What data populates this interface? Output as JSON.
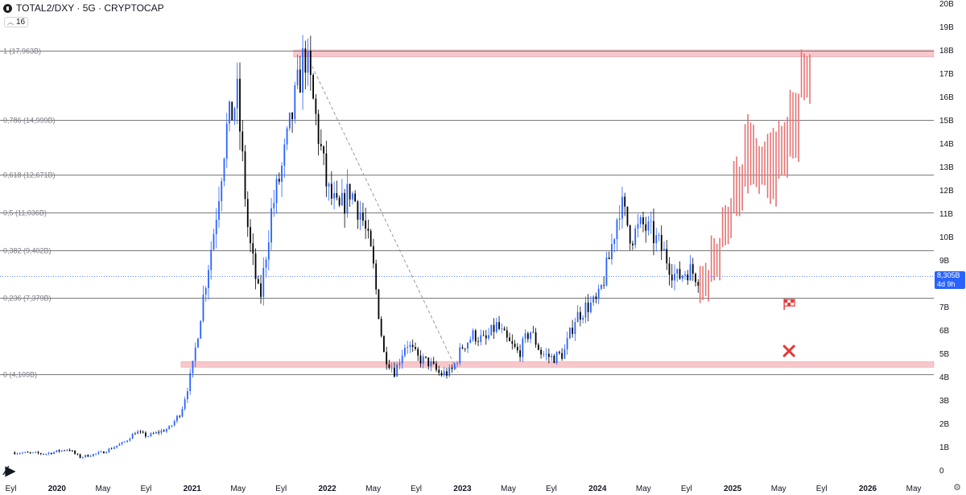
{
  "header": {
    "title": "TOTAL2/DXY · 5G · CRYPTOCAP",
    "indicator_badge": "16"
  },
  "price_tag": {
    "value": "8,305B",
    "countdown": "4d 9h",
    "color": "#2962ff"
  },
  "chart_data": {
    "type": "candlestick",
    "title": "TOTAL2/DXY · 5G · CRYPTOCAP",
    "y_unit": "B",
    "ylim": [
      0,
      20
    ],
    "y_ticks": [
      "0",
      "1B",
      "2B",
      "3B",
      "4B",
      "5B",
      "6B",
      "7B",
      "8B",
      "9B",
      "10B",
      "11B",
      "12B",
      "13B",
      "14B",
      "15B",
      "16B",
      "17B",
      "18B",
      "19B",
      "20B"
    ],
    "x_ticks": [
      "Eyl",
      "2020",
      "May",
      "Eyl",
      "2021",
      "May",
      "Eyl",
      "2022",
      "May",
      "Eyl",
      "2023",
      "May",
      "Eyl",
      "2024",
      "May",
      "Eyl",
      "2025",
      "May",
      "Eyl",
      "2026",
      "May"
    ],
    "x_range": [
      "2019-09",
      "2026-07"
    ],
    "last_price": 8.305,
    "fib_levels": [
      {
        "label": "1 (17,963B)",
        "value": 17.963
      },
      {
        "label": "0,786 (14,999B)",
        "value": 14.999
      },
      {
        "label": "0,618 (12,671B)",
        "value": 12.671
      },
      {
        "label": "0,5 (11,036B)",
        "value": 11.036
      },
      {
        "label": "0,382 (9,402B)",
        "value": 9.402
      },
      {
        "label": "0,236 (7,379B)",
        "value": 7.379
      },
      {
        "label": "0 (4,109B)",
        "value": 4.109
      }
    ],
    "zones": [
      {
        "from": "2021-10",
        "to": "2026-07",
        "low": 17.7,
        "high": 18.0,
        "color": "#f6c7cb"
      },
      {
        "from": "2020-12",
        "to": "2026-07",
        "low": 4.4,
        "high": 4.65,
        "color": "#f6c7cb"
      }
    ],
    "trendline": {
      "from": [
        "2021-11",
        17.96
      ],
      "to": [
        "2022-12",
        4.2
      ],
      "style": "dashed"
    },
    "series": [
      {
        "style": "candles",
        "up_color": "#2962ff",
        "down_color": "#000000",
        "close_path": [
          [
            "2019-09",
            0.75
          ],
          [
            "2019-12",
            0.7
          ],
          [
            "2020-02",
            0.9
          ],
          [
            "2020-03",
            0.55
          ],
          [
            "2020-05",
            0.75
          ],
          [
            "2020-07",
            1.2
          ],
          [
            "2020-08",
            1.65
          ],
          [
            "2020-09",
            1.45
          ],
          [
            "2020-11",
            1.8
          ],
          [
            "2020-12",
            2.5
          ],
          [
            "2021-01",
            4.3
          ],
          [
            "2021-02",
            7.5
          ],
          [
            "2021-03",
            10.5
          ],
          [
            "2021-04",
            14.5
          ],
          [
            "2021-05",
            16.0
          ],
          [
            "2021-06",
            10.0
          ],
          [
            "2021-07",
            7.2
          ],
          [
            "2021-08",
            11.0
          ],
          [
            "2021-09",
            13.0
          ],
          [
            "2021-10",
            15.5
          ],
          [
            "2021-11",
            17.9
          ],
          [
            "2021-12",
            15.0
          ],
          [
            "2022-01",
            12.0
          ],
          [
            "2022-02",
            11.0
          ],
          [
            "2022-03",
            12.0
          ],
          [
            "2022-04",
            11.0
          ],
          [
            "2022-05",
            9.0
          ],
          [
            "2022-06",
            5.0
          ],
          [
            "2022-07",
            4.2
          ],
          [
            "2022-08",
            5.5
          ],
          [
            "2022-09",
            4.8
          ],
          [
            "2022-10",
            4.6
          ],
          [
            "2022-11",
            4.1
          ],
          [
            "2022-12",
            4.2
          ],
          [
            "2023-01",
            5.3
          ],
          [
            "2023-02",
            5.8
          ],
          [
            "2023-03",
            5.5
          ],
          [
            "2023-04",
            6.2
          ],
          [
            "2023-05",
            5.5
          ],
          [
            "2023-06",
            5.0
          ],
          [
            "2023-07",
            6.0
          ],
          [
            "2023-08",
            5.0
          ],
          [
            "2023-09",
            4.8
          ],
          [
            "2023-10",
            5.0
          ],
          [
            "2023-11",
            6.5
          ],
          [
            "2023-12",
            7.0
          ],
          [
            "2024-01",
            7.2
          ],
          [
            "2024-02",
            9.0
          ],
          [
            "2024-03",
            11.5
          ],
          [
            "2024-04",
            10.0
          ],
          [
            "2024-05",
            10.5
          ],
          [
            "2024-06",
            10.0
          ],
          [
            "2024-07",
            9.2
          ],
          [
            "2024-08",
            8.2
          ],
          [
            "2024-09",
            8.6
          ],
          [
            "2024-10",
            8.305
          ]
        ]
      },
      {
        "style": "projected-bars",
        "color": "#e57373",
        "bars": [
          [
            "2024-10",
            7.4,
            8.8
          ],
          [
            "2024-11",
            8.3,
            9.9
          ],
          [
            "2024-12",
            9.8,
            11.5
          ],
          [
            "2025-01",
            11.0,
            13.2
          ],
          [
            "2025-02",
            12.0,
            15.0
          ],
          [
            "2025-03",
            12.0,
            14.0
          ],
          [
            "2025-04",
            11.5,
            14.5
          ],
          [
            "2025-05",
            12.5,
            14.9
          ],
          [
            "2025-06",
            13.2,
            16.3
          ],
          [
            "2025-07",
            15.8,
            17.9
          ]
        ]
      }
    ],
    "markers": [
      {
        "type": "flag",
        "date": "2025-06",
        "value": 7.1,
        "color": "#e53935"
      },
      {
        "type": "cross",
        "date": "2025-06",
        "value": 5.1,
        "color": "#e53935"
      }
    ],
    "grid": false
  },
  "icons": {
    "symbol_icon": "coin-icon",
    "logo": "tradingview-logo-icon",
    "settings": "gear-icon"
  }
}
